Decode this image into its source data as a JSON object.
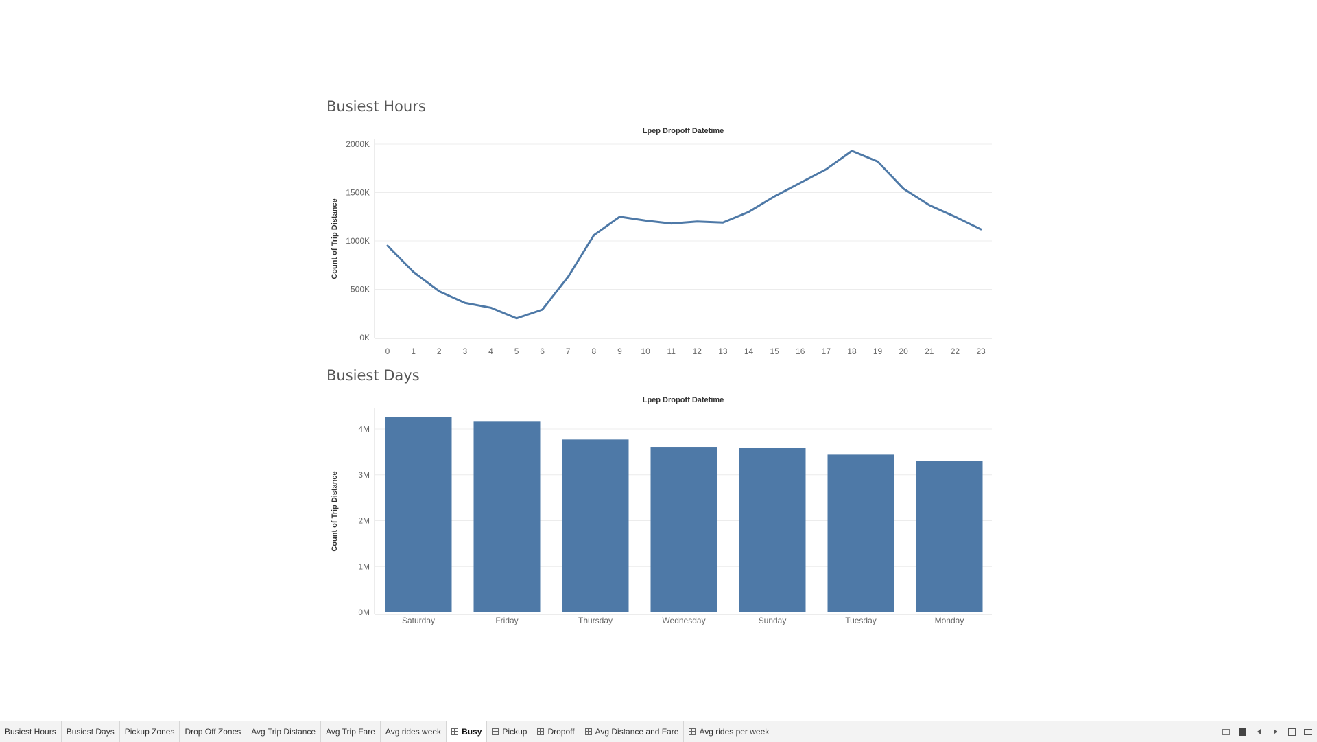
{
  "dashboard": {
    "chart1_title": "Busiest Hours",
    "chart2_title": "Busiest Days"
  },
  "chart_data": [
    {
      "type": "line",
      "title": "Lpep Dropoff Datetime",
      "xlabel": "",
      "ylabel": "Count of Trip Distance",
      "x": [
        0,
        1,
        2,
        3,
        4,
        5,
        6,
        7,
        8,
        9,
        10,
        11,
        12,
        13,
        14,
        15,
        16,
        17,
        18,
        19,
        20,
        21,
        22,
        23
      ],
      "values": [
        950000,
        680000,
        480000,
        360000,
        310000,
        200000,
        290000,
        630000,
        1060000,
        1250000,
        1210000,
        1180000,
        1200000,
        1190000,
        1300000,
        1460000,
        1600000,
        1740000,
        1930000,
        1820000,
        1540000,
        1370000,
        1250000,
        1120000
      ],
      "ylim": [
        0,
        2000000
      ],
      "yticks": [
        {
          "value": 0,
          "label": "0K"
        },
        {
          "value": 500000,
          "label": "500K"
        },
        {
          "value": 1000000,
          "label": "1000K"
        },
        {
          "value": 1500000,
          "label": "1500K"
        },
        {
          "value": 2000000,
          "label": "2000K"
        }
      ],
      "color": "#4e79a7",
      "grid": true
    },
    {
      "type": "bar",
      "title": "Lpep Dropoff Datetime",
      "xlabel": "",
      "ylabel": "Count of Trip Distance",
      "categories": [
        "Saturday",
        "Friday",
        "Thursday",
        "Wednesday",
        "Sunday",
        "Tuesday",
        "Monday"
      ],
      "values": [
        4260000,
        4160000,
        3770000,
        3610000,
        3590000,
        3440000,
        3310000
      ],
      "ylim": [
        0,
        4000000
      ],
      "yticks": [
        {
          "value": 0,
          "label": "0M"
        },
        {
          "value": 1000000,
          "label": "1M"
        },
        {
          "value": 2000000,
          "label": "2M"
        },
        {
          "value": 3000000,
          "label": "3M"
        },
        {
          "value": 4000000,
          "label": "4M"
        }
      ],
      "color": "#4e79a7",
      "grid": true
    }
  ],
  "tabs": [
    {
      "label": "Busiest Hours",
      "type": "sheet",
      "active": false
    },
    {
      "label": "Busiest Days",
      "type": "sheet",
      "active": false
    },
    {
      "label": "Pickup Zones",
      "type": "sheet",
      "active": false
    },
    {
      "label": "Drop Off Zones",
      "type": "sheet",
      "active": false
    },
    {
      "label": "Avg Trip Distance",
      "type": "sheet",
      "active": false
    },
    {
      "label": "Avg Trip Fare",
      "type": "sheet",
      "active": false
    },
    {
      "label": "Avg rides week",
      "type": "sheet",
      "active": false
    },
    {
      "label": "Busy",
      "type": "dashboard",
      "active": true
    },
    {
      "label": "Pickup",
      "type": "dashboard",
      "active": false
    },
    {
      "label": "Dropoff",
      "type": "dashboard",
      "active": false
    },
    {
      "label": "Avg Distance and Fare",
      "type": "dashboard",
      "active": false
    },
    {
      "label": "Avg rides per week",
      "type": "dashboard",
      "active": false
    }
  ],
  "nav_icons": [
    "show-sheets-icon",
    "square-icon",
    "prev-icon",
    "next-icon",
    "fullscreen-icon",
    "presentation-icon"
  ]
}
